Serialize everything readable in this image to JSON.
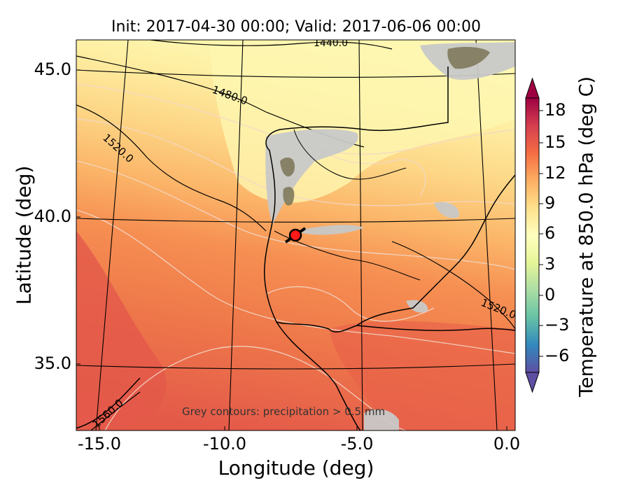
{
  "title": "Init: 2017-04-30 00:00; Valid: 2017-06-06 00:00",
  "axes": {
    "xlabel": "Longitude (deg)",
    "ylabel": "Latitude (deg)",
    "xticks": [
      "-15.0",
      "-10.0",
      "-5.0",
      "0.0"
    ],
    "yticks": [
      "45.0",
      "40.0",
      "35.0"
    ],
    "xlim": [
      -16,
      0
    ],
    "ylim": [
      32.8,
      46
    ]
  },
  "colorbar": {
    "title": "Temperature at 850.0 hPa (deg C)",
    "ticks": [
      "18",
      "15",
      "12",
      "9",
      "6",
      "3",
      "0",
      "−3",
      "−6"
    ],
    "range": [
      -8,
      20
    ],
    "colormap": "Spectral_r"
  },
  "contour_labels": [
    "1440.0",
    "1480.0",
    "1520.0",
    "1520.0",
    "1560.0"
  ],
  "annotation": "Grey contours: precipitation > 0.5 mm",
  "marker": {
    "lon": -7.7,
    "lat": 39.3,
    "color": "#ff0000"
  }
}
